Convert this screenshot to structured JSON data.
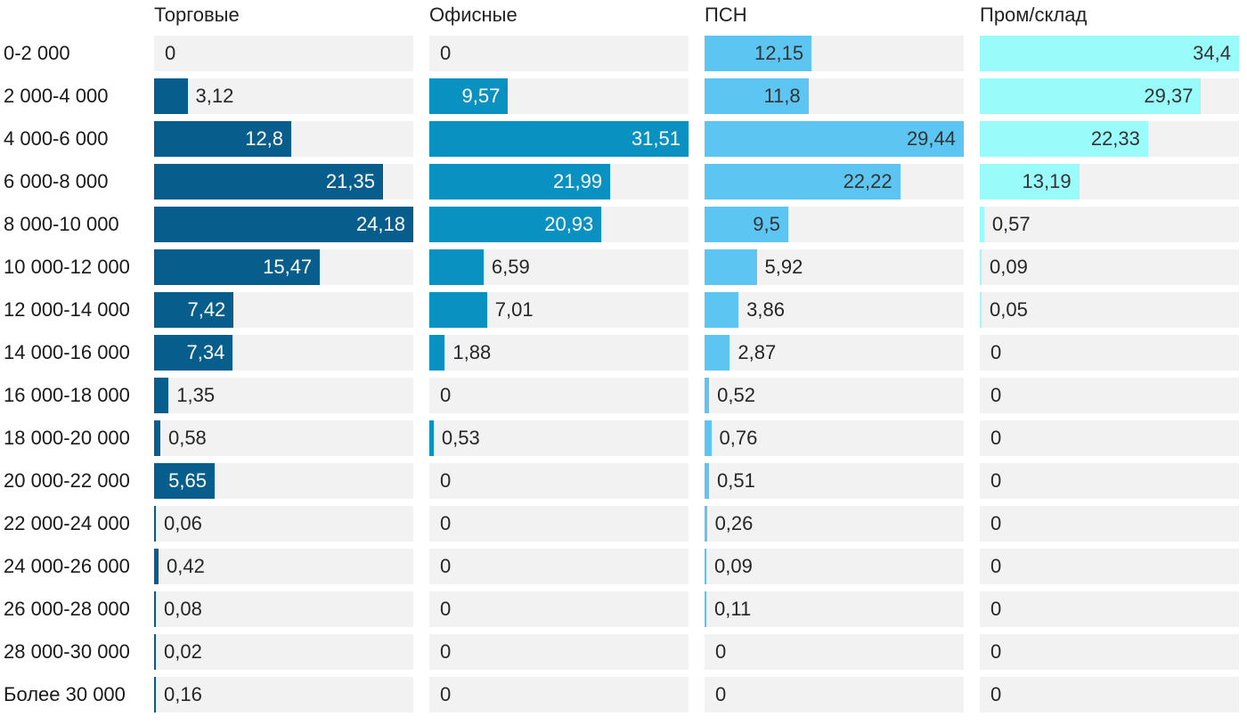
{
  "colors": {
    "background": "#ffffff",
    "track": "#f2f2f2",
    "header_text": "#222222",
    "row_label_text": "#1a1a1a",
    "value_outside_text": "#262626"
  },
  "chart_data": {
    "type": "bar",
    "orientation": "horizontal",
    "scaling": "each column scaled to its own max value; full track width = column max",
    "grid": false,
    "legend_position": "column-headers-top",
    "value_decimal_separator": ",",
    "categories": [
      "0-2 000",
      "2 000-4 000",
      "4 000-6 000",
      "6 000-8 000",
      "8 000-10 000",
      "10 000-12 000",
      "12 000-14 000",
      "14 000-16 000",
      "16 000-18 000",
      "18 000-20 000",
      "20 000-22 000",
      "22 000-24 000",
      "24 000-26 000",
      "26 000-28 000",
      "28 000-30 000",
      "Более 30 000"
    ],
    "series": [
      {
        "name": "Торговые",
        "color": "#075e8c",
        "value_color_inside": "#ffffff",
        "values": [
          0,
          3.12,
          12.8,
          21.35,
          24.18,
          15.47,
          7.42,
          7.34,
          1.35,
          0.58,
          5.65,
          0.06,
          0.42,
          0.08,
          0.02,
          0.16
        ],
        "labels": [
          "0",
          "3,12",
          "12,8",
          "21,35",
          "24,18",
          "15,47",
          "7,42",
          "7,34",
          "1,35",
          "0,58",
          "5,65",
          "0,06",
          "0,42",
          "0,08",
          "0,02",
          "0,16"
        ]
      },
      {
        "name": "Офисные",
        "color": "#0991c1",
        "value_color_inside": "#ffffff",
        "values": [
          0,
          9.57,
          31.51,
          21.99,
          20.93,
          6.59,
          7.01,
          1.88,
          0,
          0.53,
          0,
          0,
          0,
          0,
          0,
          0
        ],
        "labels": [
          "0",
          "9,57",
          "31,51",
          "21,99",
          "20,93",
          "6,59",
          "7,01",
          "1,88",
          "0",
          "0,53",
          "0",
          "0",
          "0",
          "0",
          "0",
          "0"
        ]
      },
      {
        "name": "ПСН",
        "color": "#5cc5f1",
        "value_color_inside": "#333333",
        "values": [
          12.15,
          11.8,
          29.44,
          22.22,
          9.5,
          5.92,
          3.86,
          2.87,
          0.52,
          0.76,
          0.51,
          0.26,
          0.09,
          0.11,
          0,
          0
        ],
        "labels": [
          "12,15",
          "11,8",
          "29,44",
          "22,22",
          "9,5",
          "5,92",
          "3,86",
          "2,87",
          "0,52",
          "0,76",
          "0,51",
          "0,26",
          "0,09",
          "0,11",
          "0",
          "0"
        ]
      },
      {
        "name": "Пром/склад",
        "color": "#9afbfb",
        "value_color_inside": "#333333",
        "values": [
          34.4,
          29.37,
          22.33,
          13.19,
          0.57,
          0.09,
          0.05,
          0,
          0,
          0,
          0,
          0,
          0,
          0,
          0,
          0
        ],
        "labels": [
          "34,4",
          "29,37",
          "22,33",
          "13,19",
          "0,57",
          "0,09",
          "0,05",
          "0",
          "0",
          "0",
          "0",
          "0",
          "0",
          "0",
          "0",
          "0"
        ]
      }
    ]
  }
}
